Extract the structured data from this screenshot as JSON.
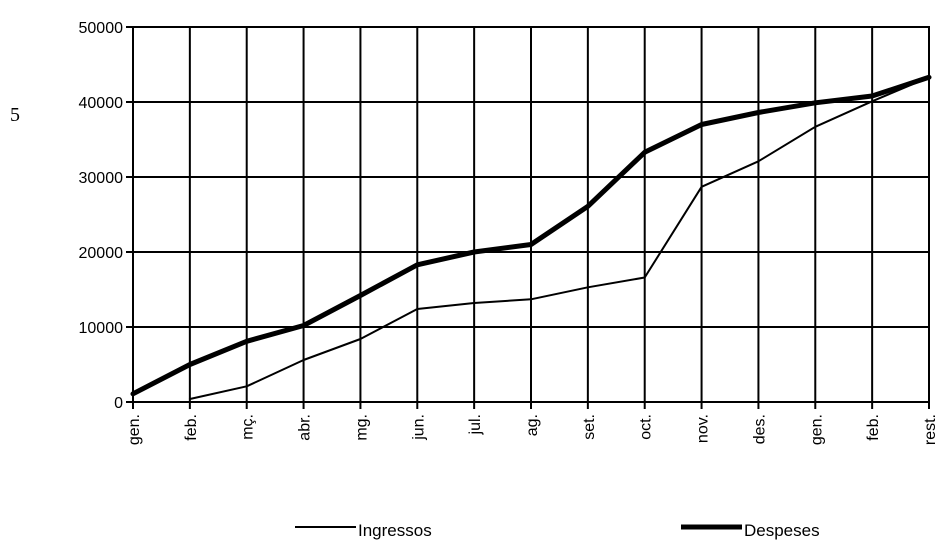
{
  "side_number": "5",
  "chart_data": {
    "type": "line",
    "title": "",
    "xlabel": "",
    "ylabel": "",
    "categories": [
      "gen.",
      "feb.",
      "mç.",
      "abr.",
      "mg.",
      "jun.",
      "jul.",
      "ag.",
      "set.",
      "oct.",
      "nov.",
      "des.",
      "gen.",
      "feb.",
      "rest."
    ],
    "ylim": [
      0,
      50000
    ],
    "yticks": [
      "0",
      "10000",
      "20000",
      "30000",
      "40000",
      "50000"
    ],
    "grid": true,
    "legend_position": "bottom",
    "series": [
      {
        "name": "Ingressos",
        "values": [
          null,
          400,
          2100,
          5600,
          8400,
          12400,
          13200,
          13700,
          15300,
          16600,
          28700,
          32100,
          36700,
          40100,
          43300
        ],
        "color": "#000000",
        "weight": "thin"
      },
      {
        "name": "Despeses",
        "values": [
          1100,
          5000,
          8100,
          10200,
          14200,
          18300,
          20000,
          21000,
          26100,
          33300,
          37000,
          38600,
          39900,
          40800,
          43300
        ],
        "color": "#000000",
        "weight": "thick"
      }
    ]
  }
}
